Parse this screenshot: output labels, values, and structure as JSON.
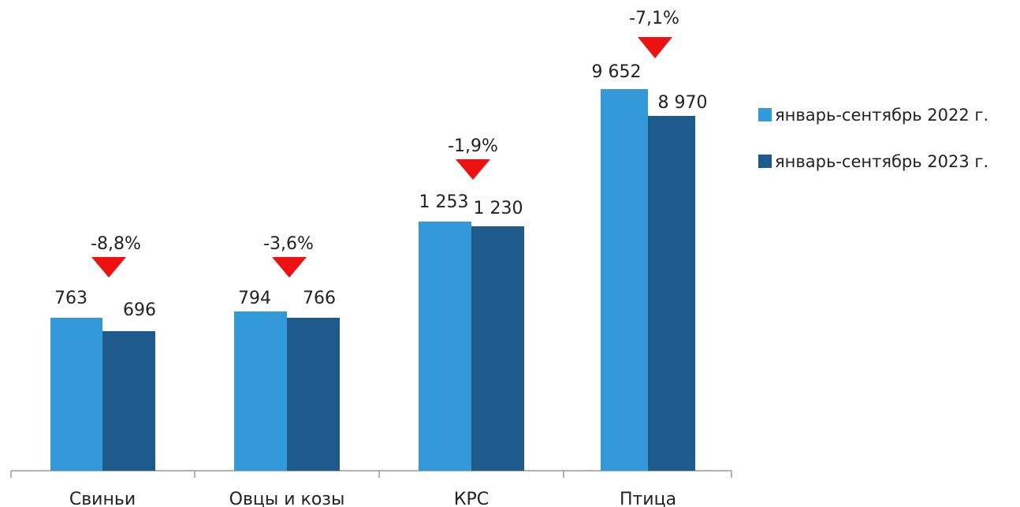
{
  "chart_data": {
    "type": "bar",
    "categories": [
      "Свиньи",
      "Овцы и козы",
      "КРС",
      "Птица"
    ],
    "series": [
      {
        "name": "январь-сентябрь 2022 г.",
        "values": [
          763,
          794,
          1253,
          9652
        ],
        "labels": [
          "763",
          "794",
          "1 253",
          "9 652"
        ]
      },
      {
        "name": "январь-сентябрь 2023 г.",
        "values": [
          696,
          766,
          1230,
          8970
        ],
        "labels": [
          "696",
          "766",
          "1 230",
          "8 970"
        ]
      }
    ],
    "changes": [
      "-8,8%",
      "-3,6%",
      "-1,9%",
      "-7,1%"
    ],
    "colors": {
      "series_2022": "#3399d9",
      "series_2023": "#1f5a8c",
      "decrease": "#ee1111",
      "axis": "#9a9a9a"
    },
    "legend_position": "right",
    "grid": false,
    "note": "y-axis is broken (non-linear), no y tick labels"
  }
}
